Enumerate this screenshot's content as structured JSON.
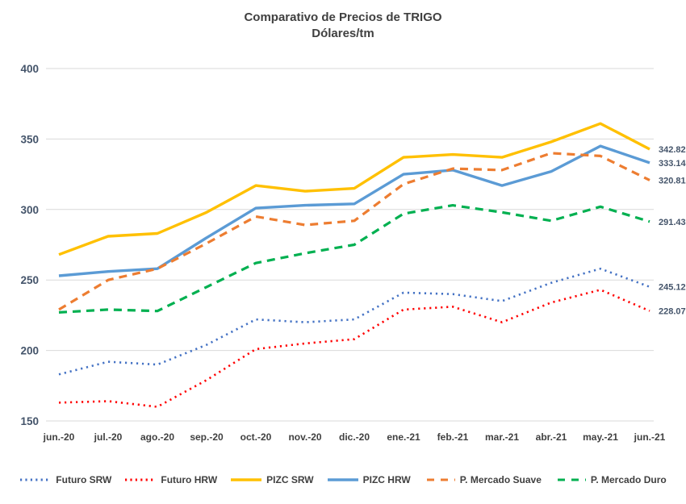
{
  "title": {
    "line1": "Comparativo de Precios de TRIGO",
    "line2": "Dólares/tm"
  },
  "chart_data": {
    "type": "line",
    "categories": [
      "jun.-20",
      "jul.-20",
      "ago.-20",
      "sep.-20",
      "oct.-20",
      "nov.-20",
      "dic.-20",
      "ene.-21",
      "feb.-21",
      "mar.-21",
      "abr.-21",
      "may.-21",
      "jun.-21"
    ],
    "series": [
      {
        "name": "Futuro SRW",
        "color": "#4472C4",
        "style": "dotted",
        "end_label": "245.12",
        "values": [
          183,
          192,
          190,
          204,
          222,
          220,
          222,
          241,
          240,
          235,
          248,
          258,
          245.12
        ]
      },
      {
        "name": "Futuro HRW",
        "color": "#FF0000",
        "style": "dotted",
        "end_label": "228.07",
        "values": [
          163,
          164,
          160,
          179,
          201,
          205,
          208,
          229,
          231,
          220,
          234,
          243,
          228.07
        ]
      },
      {
        "name": "PIZC SRW",
        "color": "#FFC000",
        "style": "solid",
        "end_label": "342.82",
        "values": [
          268,
          281,
          283,
          298,
          317,
          313,
          315,
          337,
          339,
          337,
          348,
          361,
          342.82
        ]
      },
      {
        "name": "PIZC HRW",
        "color": "#5B9BD5",
        "style": "solid",
        "end_label": "333.14",
        "values": [
          253,
          256,
          258,
          280,
          301,
          303,
          304,
          325,
          328,
          317,
          327,
          345,
          333.14
        ]
      },
      {
        "name": "P. Mercado Suave",
        "color": "#ED7D31",
        "style": "dashed",
        "end_label": "320.81",
        "values": [
          229,
          250,
          258,
          276,
          295,
          289,
          292,
          318,
          329,
          328,
          340,
          338,
          320.81
        ]
      },
      {
        "name": "P. Mercado Duro",
        "color": "#00B050",
        "style": "dashed",
        "end_label": "291.43",
        "values": [
          227,
          229,
          228,
          245,
          262,
          269,
          275,
          297,
          303,
          298,
          292,
          302,
          291.43
        ]
      }
    ],
    "ylim": [
      150,
      400
    ],
    "yticks": [
      150,
      200,
      250,
      300,
      350,
      400
    ],
    "grid": "horizontal",
    "legend_position": "bottom"
  },
  "colors": {
    "tick_label": "#44546A",
    "month_label": "#404040",
    "gridline": "#D9D9D9",
    "title": "#404040"
  }
}
